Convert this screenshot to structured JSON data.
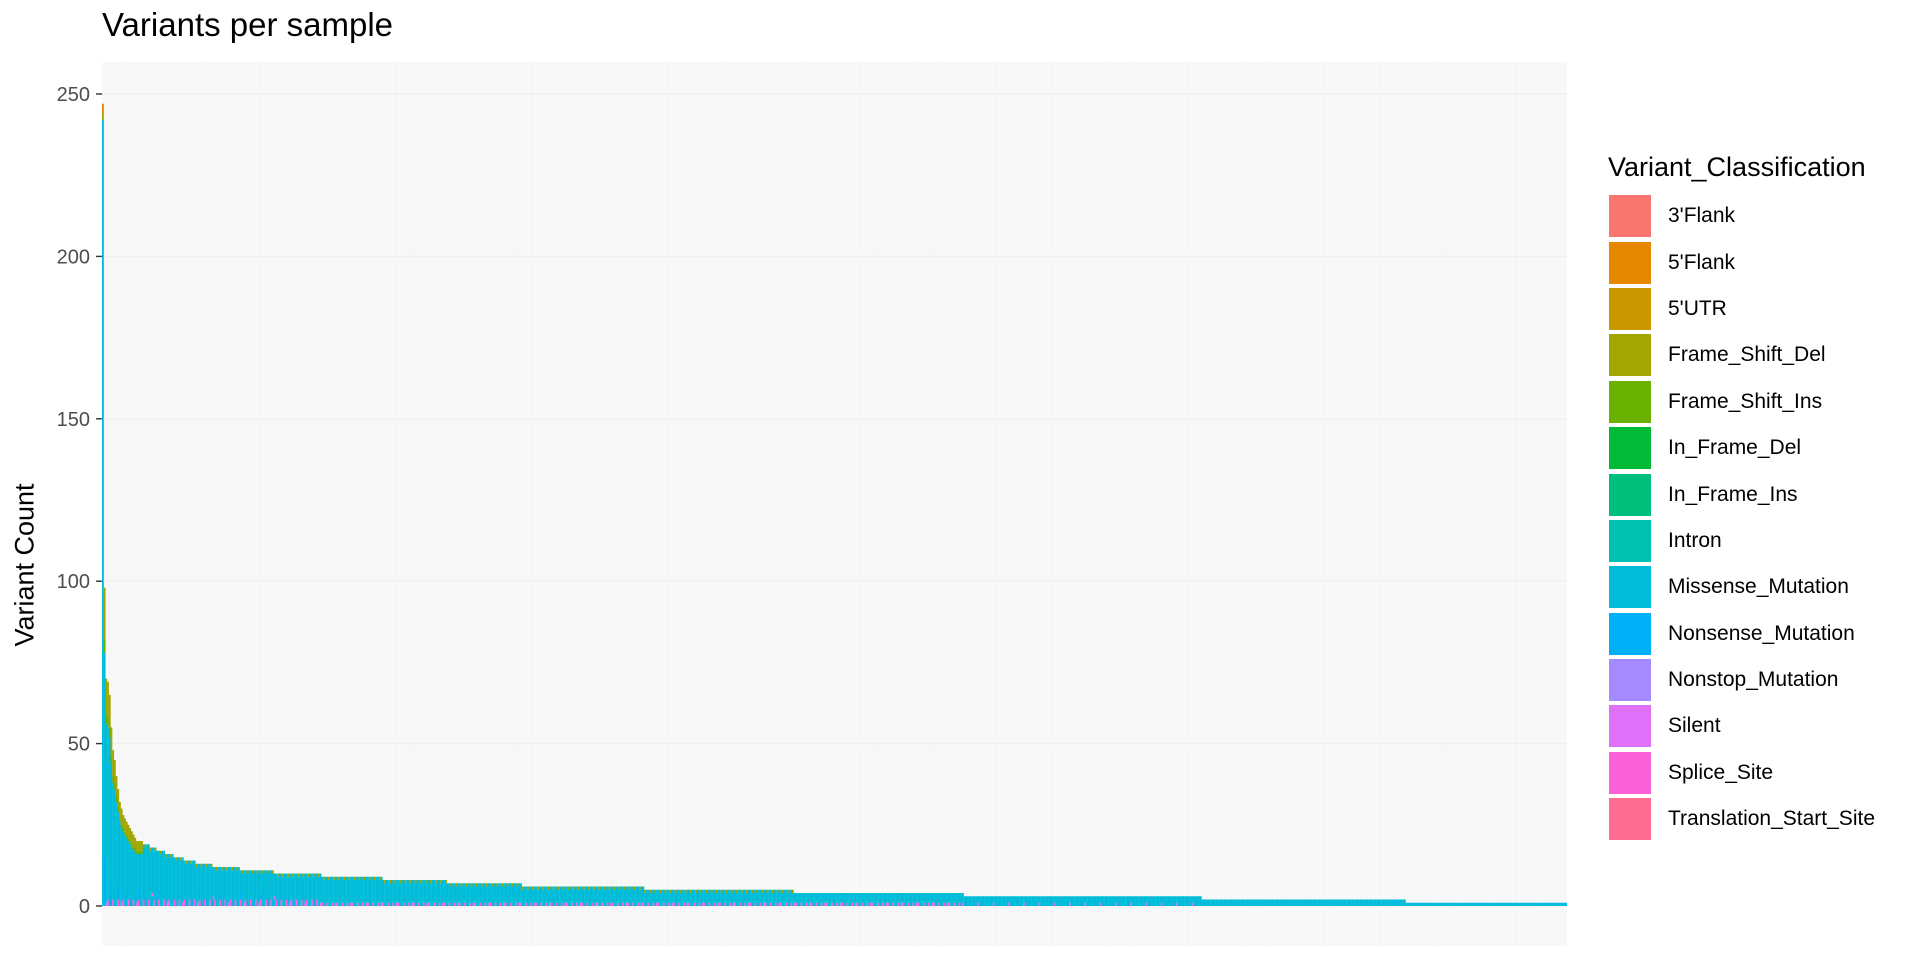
{
  "chart_data": {
    "type": "bar",
    "title": "Variants per sample",
    "xlabel": "",
    "ylabel": "Variant Count",
    "ylim": [
      0,
      262
    ],
    "yticks": [
      0,
      50,
      100,
      150,
      200,
      250
    ],
    "x_tick_labels": "none",
    "grid": true,
    "legend": {
      "title": "Variant_Classification",
      "placement": "right",
      "entries": [
        {
          "name": "3'Flank",
          "color": "#F8766D"
        },
        {
          "name": "5'Flank",
          "color": "#E58700"
        },
        {
          "name": "5'UTR",
          "color": "#C99800"
        },
        {
          "name": "Frame_Shift_Del",
          "color": "#A3A500"
        },
        {
          "name": "Frame_Shift_Ins",
          "color": "#6BB100"
        },
        {
          "name": "In_Frame_Del",
          "color": "#00BA38"
        },
        {
          "name": "In_Frame_Ins",
          "color": "#00BF7D"
        },
        {
          "name": "Intron",
          "color": "#00C0AF"
        },
        {
          "name": "Missense_Mutation",
          "color": "#00BCD8"
        },
        {
          "name": "Nonsense_Mutation",
          "color": "#00B0F6"
        },
        {
          "name": "Nonstop_Mutation",
          "color": "#A58AFF"
        },
        {
          "name": "Silent",
          "color": "#DF70F8"
        },
        {
          "name": "Splice_Site",
          "color": "#FB61D7"
        },
        {
          "name": "Translation_Start_Site",
          "color": "#FF6C91"
        }
      ]
    },
    "total_per_sample_sorted": [
      247,
      98,
      70,
      69,
      65,
      55,
      48,
      45,
      40,
      36,
      32,
      30,
      28,
      27,
      26,
      25,
      24,
      23,
      22,
      21,
      {
        "value": 20,
        "count": 4
      },
      {
        "value": 19,
        "count": 4
      },
      {
        "value": 18,
        "count": 4
      },
      {
        "value": 17,
        "count": 5
      },
      {
        "value": 16,
        "count": 5
      },
      {
        "value": 15,
        "count": 6
      },
      {
        "value": 14,
        "count": 7
      },
      {
        "value": 13,
        "count": 10
      },
      {
        "value": 12,
        "count": 16
      },
      {
        "value": 11,
        "count": 20
      },
      {
        "value": 10,
        "count": 28
      },
      {
        "value": 9,
        "count": 36
      },
      {
        "value": 8,
        "count": 38
      },
      {
        "value": 7,
        "count": 44
      },
      {
        "value": 6,
        "count": 72
      },
      {
        "value": 5,
        "count": 88
      },
      {
        "value": 4,
        "count": 100
      },
      {
        "value": 3,
        "count": 140
      },
      {
        "value": 2,
        "count": 120
      },
      {
        "value": 1,
        "count": 95
      }
    ],
    "top_sample_breakdown": {
      "Missense_Mutation": 242,
      "Frame_Shift_Del": 2,
      "5'Flank": 3
    }
  }
}
